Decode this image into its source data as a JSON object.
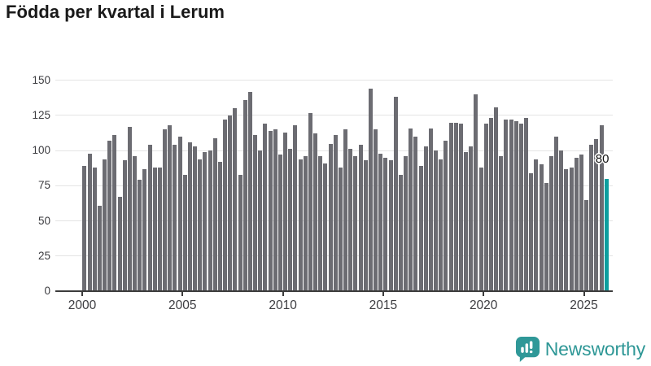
{
  "title": "Födda per kvartal i Lerum",
  "logo": {
    "text": "Newsworthy"
  },
  "colors": {
    "bar": "#6c6c72",
    "highlight": "#0d9e9e",
    "axis": "#3c3c3c",
    "grid": "#e4e4e4",
    "title": "#1a1a1a",
    "logo": "#2e9796",
    "background": "#ffffff"
  },
  "chart_data": {
    "type": "bar",
    "title": "Födda per kvartal i Lerum",
    "xlabel": "",
    "ylabel": "",
    "x_start": "2000-Q1",
    "x_end": "2026-Q1",
    "frequency": "quarterly",
    "values": [
      89,
      98,
      88,
      61,
      94,
      107,
      111,
      67,
      93,
      117,
      96,
      79,
      87,
      104,
      88,
      88,
      115,
      118,
      104,
      110,
      83,
      106,
      103,
      94,
      99,
      100,
      109,
      92,
      122,
      125,
      130,
      83,
      136,
      142,
      111,
      100,
      119,
      114,
      115,
      97,
      113,
      101,
      118,
      94,
      96,
      127,
      112,
      96,
      91,
      105,
      111,
      88,
      115,
      101,
      96,
      104,
      93,
      144,
      115,
      98,
      95,
      93,
      138,
      83,
      96,
      116,
      110,
      89,
      103,
      116,
      100,
      94,
      107,
      120,
      120,
      119,
      99,
      103,
      140,
      88,
      119,
      123,
      131,
      96,
      122,
      122,
      121,
      119,
      123,
      84,
      94,
      90,
      77,
      96,
      110,
      100,
      87,
      88,
      95,
      97,
      65,
      104,
      108,
      118,
      80
    ],
    "highlight_index": 104,
    "highlight_value_label": "80",
    "yticks": [
      0,
      25,
      50,
      75,
      100,
      125,
      150
    ],
    "ytick_labels": [
      "0",
      "25",
      "50",
      "75",
      "100",
      "125",
      "150"
    ],
    "xticks": [
      2000,
      2005,
      2010,
      2015,
      2020,
      2025
    ],
    "xtick_labels": [
      "2000",
      "2005",
      "2010",
      "2015",
      "2020",
      "2025"
    ],
    "ylim": [
      0,
      150
    ],
    "grid": true,
    "legend": false
  }
}
